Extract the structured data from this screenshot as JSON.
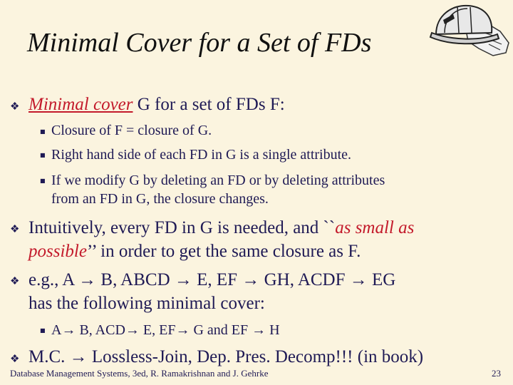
{
  "title": "Minimal Cover for a Set of FDs",
  "logo_icon": "hardhat-gloves-icon",
  "bullets": {
    "b1": {
      "term": "Minimal cover",
      "rest": "  G for a set of FDs F:"
    },
    "b1_sub": [
      "Closure of F  =  closure of G.",
      "Right hand side of each FD in G is a single attribute.",
      "If we modify G by deleting an FD or by deleting attributes",
      "from an FD in G, the closure changes."
    ],
    "b2": {
      "line1_pre": "Intuitively, every FD in G is needed, and ``",
      "line1_emph": "as small as",
      "line2_emph": "possible",
      "line2_post": "’’ in order to get the same closure as F."
    },
    "b3": {
      "line1": "e.g.,  A →  B,  ABCD  →  E,  EF → GH,  ACDF →   EG",
      "line2": "has the following minimal cover:"
    },
    "b3_sub": "A→  B,  ACD→  E,  EF→  G  and  EF →  H",
    "b4": "M.C. → Lossless-Join, Dep. Pres. Decomp!!! (in book)"
  },
  "footer": "Database Management Systems, 3ed, R. Ramakrishnan and J. Gehrke",
  "page_number": "23",
  "colors": {
    "background": "#fbf4df",
    "text": "#1f1a55",
    "emphasis": "#c31a2b"
  }
}
